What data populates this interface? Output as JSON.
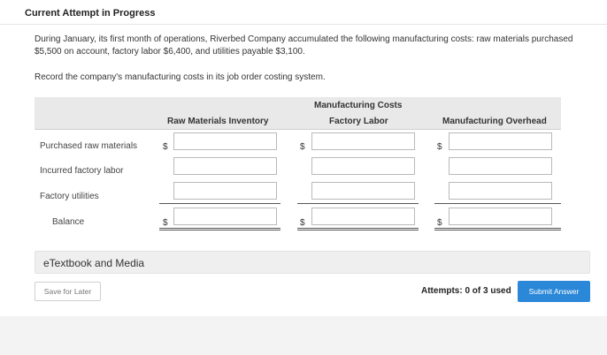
{
  "header": {
    "title": "Current Attempt in Progress"
  },
  "question": {
    "text": "During January, its first month of operations, Riverbed Company accumulated the following manufacturing costs: raw materials purchased $5,500 on account, factory labor $6,400, and utilities payable $3,100.",
    "instruction": "Record the company's manufacturing costs in its job order costing system."
  },
  "table": {
    "group_header": "Manufacturing Costs",
    "columns": [
      "Raw Materials Inventory",
      "Factory Labor",
      "Manufacturing Overhead"
    ],
    "currency_symbol": "$",
    "rows": [
      {
        "label": "Purchased raw materials",
        "values": [
          "",
          "",
          ""
        ]
      },
      {
        "label": "Incurred factory labor",
        "values": [
          "",
          "",
          ""
        ]
      },
      {
        "label": "Factory utilities",
        "values": [
          "",
          "",
          ""
        ]
      },
      {
        "label": "Balance",
        "values": [
          "",
          "",
          ""
        ]
      }
    ]
  },
  "etextbook": {
    "label": "eTextbook and Media"
  },
  "footer": {
    "save_label": "Save for Later",
    "attempts_text": "Attempts: 0 of 3 used",
    "submit_label": "Submit Answer"
  },
  "colors": {
    "accent": "#2b88d8",
    "header_bg": "#e9e9e9",
    "page_bg": "#f3f3f3"
  }
}
